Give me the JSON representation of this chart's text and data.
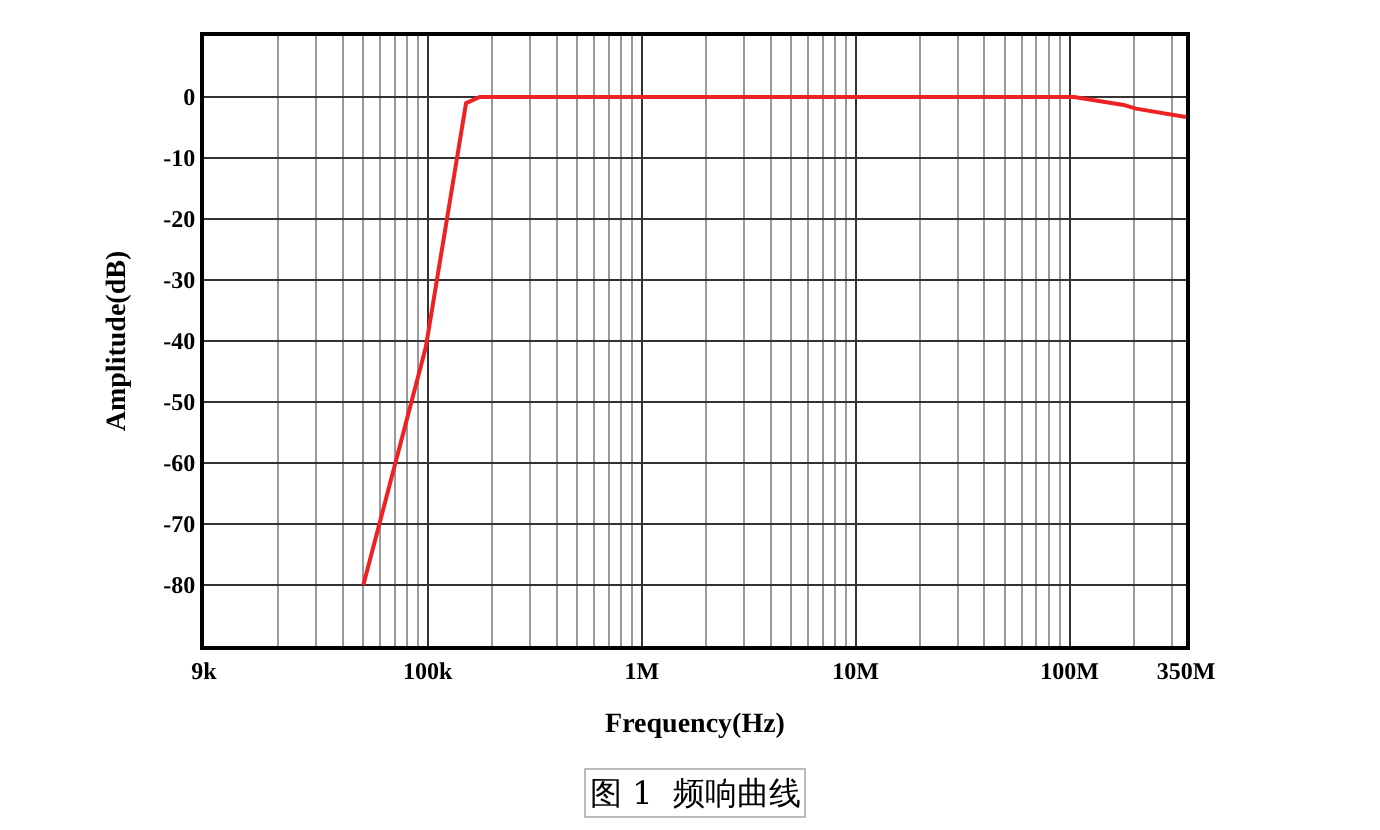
{
  "chart_data": {
    "type": "line",
    "xlabel": "Frequency(Hz)",
    "ylabel": "Amplitude(dB)",
    "x": [
      50000,
      98000,
      151000,
      175000,
      105000000,
      179000000,
      204000000,
      350000000
    ],
    "series": [
      {
        "color": "#ee2222",
        "values": [
          -80,
          -41,
          -1,
          0,
          0,
          -1.3,
          -1.9,
          -3.3
        ]
      }
    ],
    "log": "x",
    "xlim": [
      9000,
      350000000
    ],
    "xticks": [
      {
        "value": 9000,
        "label": "9k"
      },
      {
        "value": 100000,
        "label": "100k"
      },
      {
        "value": 1000000,
        "label": "1M"
      },
      {
        "value": 10000000,
        "label": "10M"
      },
      {
        "value": 100000000,
        "label": "100M"
      },
      {
        "value": 350000000,
        "label": "350M"
      }
    ],
    "ylim": [
      -90,
      10
    ],
    "yticks": [
      0,
      -10,
      -20,
      -30,
      -40,
      -50,
      -60,
      -70,
      -80
    ],
    "grid": true,
    "marker": "none",
    "line_style": "solid",
    "annotations": [
      "图 1  频响曲线"
    ]
  }
}
